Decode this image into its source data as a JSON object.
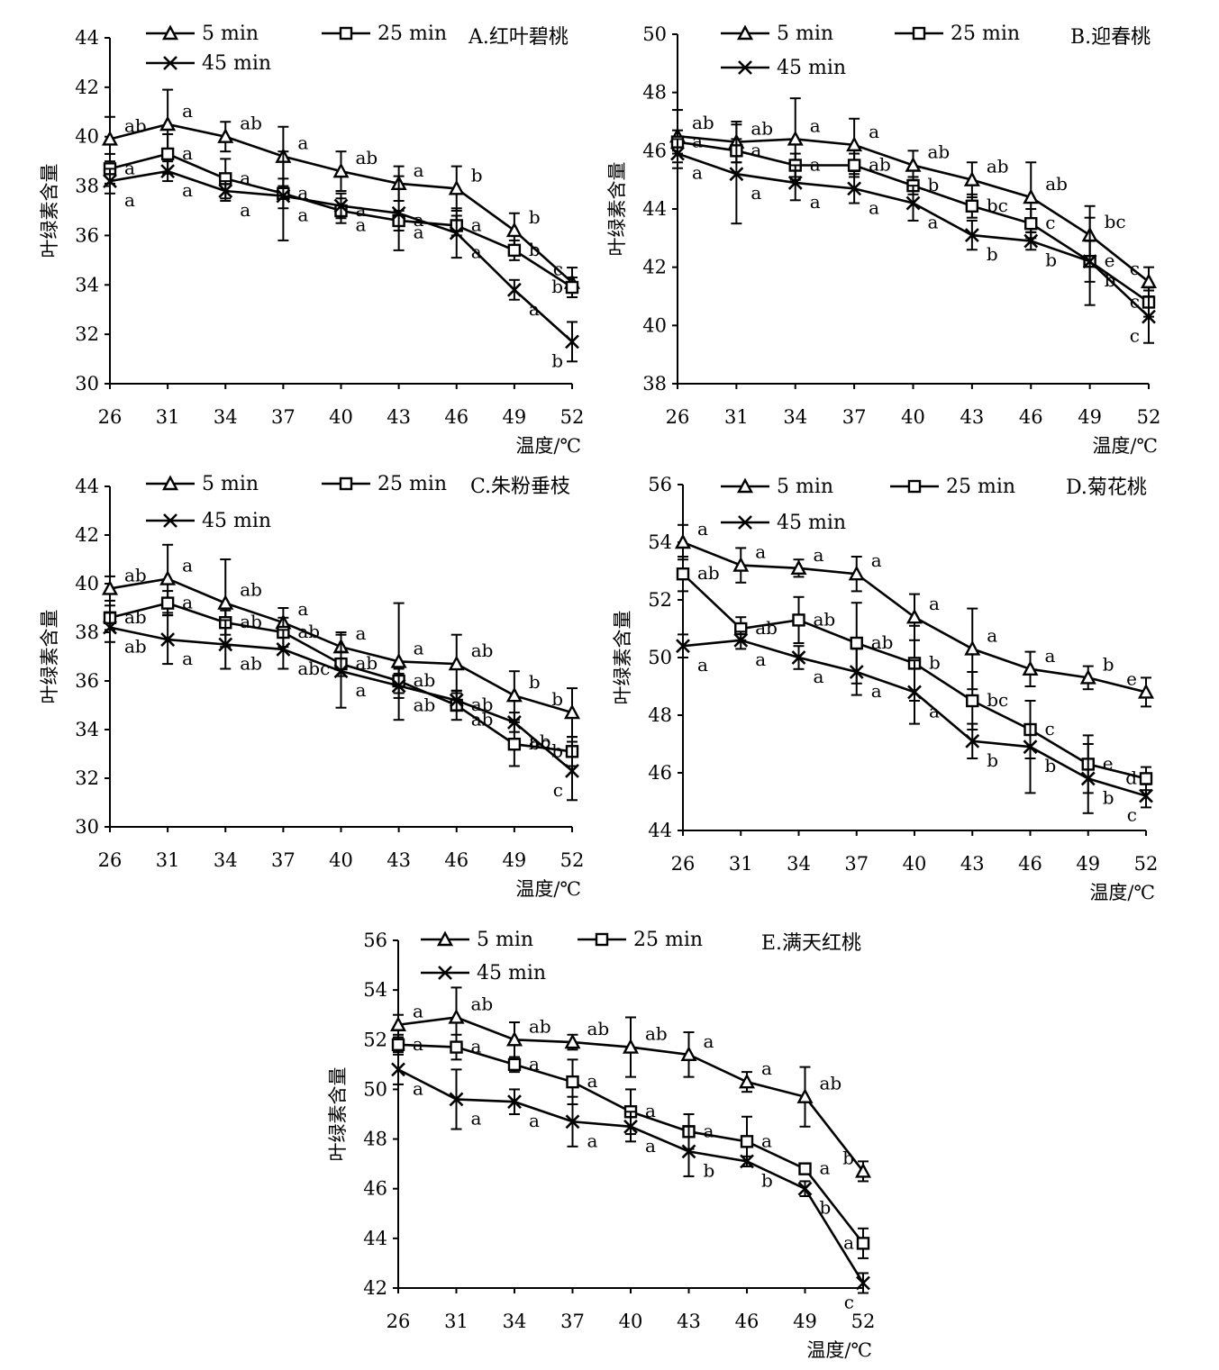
{
  "chart_data": [
    {
      "type": "line",
      "title": "A.红叶碧桃",
      "xlabel": "温度/℃",
      "ylabel": "叶绿素含量",
      "x": [
        26,
        31,
        34,
        37,
        40,
        43,
        46,
        49,
        52
      ],
      "ylim": [
        30,
        44
      ],
      "yticks": [
        30,
        32,
        34,
        36,
        38,
        40,
        42,
        44
      ],
      "series": [
        {
          "name": "5 min",
          "marker": "triangle",
          "values": [
            39.9,
            40.5,
            40.0,
            39.2,
            38.6,
            38.1,
            37.9,
            36.2,
            34.1
          ],
          "errors": [
            0.9,
            1.4,
            0.6,
            1.2,
            0.8,
            0.7,
            0.9,
            0.7,
            0.6
          ],
          "labels": [
            "ab",
            "a",
            "ab",
            "a",
            "ab",
            "a",
            "b",
            "b",
            "c"
          ]
        },
        {
          "name": "25 min",
          "marker": "square",
          "values": [
            38.7,
            39.3,
            38.3,
            37.7,
            37.0,
            36.6,
            36.4,
            35.4,
            33.9
          ],
          "errors": [
            0.6,
            0.8,
            0.8,
            0.6,
            0.5,
            0.4,
            0.4,
            0.4,
            0.4
          ],
          "labels": [
            "a",
            "a",
            "a",
            "a",
            "a",
            "a",
            "a",
            "b",
            "b"
          ]
        },
        {
          "name": "45 min",
          "marker": "x",
          "values": [
            38.2,
            38.6,
            37.8,
            37.6,
            37.2,
            36.9,
            36.1,
            33.8,
            31.7
          ],
          "errors": [
            0.5,
            0.4,
            0.4,
            1.8,
            0.5,
            1.5,
            1.0,
            0.4,
            0.8
          ],
          "labels": [
            "a",
            "a",
            "a",
            "a",
            "a",
            "a",
            "a",
            "a",
            "b"
          ]
        }
      ]
    },
    {
      "type": "line",
      "title": "B.迎春桃",
      "xlabel": "温度/℃",
      "ylabel": "叶绿素含量",
      "x": [
        26,
        31,
        34,
        37,
        40,
        43,
        46,
        49,
        52
      ],
      "ylim": [
        38,
        50
      ],
      "yticks": [
        38,
        40,
        42,
        44,
        46,
        48,
        50
      ],
      "series": [
        {
          "name": "5 min",
          "marker": "triangle",
          "values": [
            46.5,
            46.3,
            46.4,
            46.2,
            45.5,
            45.0,
            44.4,
            43.1,
            41.5
          ],
          "errors": [
            0.9,
            0.7,
            1.4,
            0.9,
            0.5,
            0.6,
            1.2,
            1.0,
            0.5
          ],
          "labels": [
            "ab",
            "ab",
            "a",
            "a",
            "ab",
            "ab",
            "ab",
            "bc",
            "c"
          ]
        },
        {
          "name": "25 min",
          "marker": "square",
          "values": [
            46.3,
            46.0,
            45.5,
            45.5,
            44.8,
            44.1,
            43.5,
            42.2,
            40.8
          ],
          "errors": [
            0.4,
            0.4,
            0.4,
            0.4,
            0.3,
            0.4,
            0.5,
            0.7,
            0.5
          ],
          "labels": [
            "a",
            "a",
            "a",
            "ab",
            "b",
            "bc",
            "c",
            "e",
            "c"
          ]
        },
        {
          "name": "45 min",
          "marker": "x",
          "values": [
            45.9,
            45.2,
            44.9,
            44.7,
            44.2,
            43.1,
            42.9,
            42.2,
            40.3
          ],
          "errors": [
            0.5,
            1.7,
            0.6,
            0.5,
            0.6,
            0.5,
            0.3,
            1.5,
            0.9
          ],
          "labels": [
            "a",
            "a",
            "a",
            "a",
            "a",
            "b",
            "b",
            "b",
            "c"
          ]
        }
      ]
    },
    {
      "type": "line",
      "title": "C.朱粉垂枝",
      "xlabel": "温度/℃",
      "ylabel": "叶绿素含量",
      "x": [
        26,
        31,
        34,
        37,
        40,
        43,
        46,
        49,
        52
      ],
      "ylim": [
        30,
        44
      ],
      "yticks": [
        30,
        32,
        34,
        36,
        38,
        40,
        42,
        44
      ],
      "series": [
        {
          "name": "5 min",
          "marker": "triangle",
          "values": [
            39.8,
            40.2,
            39.2,
            38.4,
            37.4,
            36.8,
            36.7,
            35.4,
            34.7
          ],
          "errors": [
            0.5,
            1.4,
            1.8,
            0.6,
            0.6,
            2.4,
            1.2,
            1.0,
            1.0
          ],
          "labels": [
            "ab",
            "a",
            "ab",
            "a",
            "a",
            "a",
            "ab",
            "b",
            "b"
          ]
        },
        {
          "name": "25 min",
          "marker": "square",
          "values": [
            38.6,
            39.2,
            38.4,
            38.0,
            36.7,
            36.0,
            35.0,
            33.4,
            33.1
          ],
          "errors": [
            0.5,
            0.5,
            0.5,
            0.6,
            0.5,
            0.5,
            0.6,
            0.9,
            0.6
          ],
          "labels": [
            "ab",
            "a",
            "ab",
            "ab",
            "ab",
            "ab",
            "ab",
            "bc",
            "b"
          ]
        },
        {
          "name": "45 min",
          "marker": "x",
          "values": [
            38.2,
            37.7,
            37.5,
            37.3,
            36.4,
            35.8,
            35.2,
            34.3,
            32.3
          ],
          "errors": [
            0.6,
            1.0,
            1.0,
            0.8,
            1.5,
            0.5,
            0.4,
            0.4,
            1.2
          ],
          "labels": [
            "ab",
            "a",
            "ab",
            "abc",
            "a",
            "ab",
            "ab",
            "ab",
            "c"
          ]
        }
      ]
    },
    {
      "type": "line",
      "title": "D.菊花桃",
      "xlabel": "温度/℃",
      "ylabel": "叶绿素含量",
      "x": [
        26,
        31,
        34,
        37,
        40,
        43,
        46,
        49,
        52
      ],
      "ylim": [
        44,
        56
      ],
      "yticks": [
        44,
        46,
        48,
        50,
        52,
        54,
        56
      ],
      "series": [
        {
          "name": "5 min",
          "marker": "triangle",
          "values": [
            54.0,
            53.2,
            53.1,
            52.9,
            51.4,
            50.3,
            49.6,
            49.3,
            48.8
          ],
          "errors": [
            0.6,
            0.6,
            0.3,
            0.6,
            0.8,
            1.4,
            0.6,
            0.4,
            0.5
          ],
          "labels": [
            "a",
            "a",
            "a",
            "a",
            "a",
            "a",
            "a",
            "b",
            "e"
          ]
        },
        {
          "name": "25 min",
          "marker": "square",
          "values": [
            52.9,
            51.0,
            51.3,
            50.5,
            49.8,
            48.5,
            47.5,
            46.3,
            45.8
          ],
          "errors": [
            0.6,
            0.4,
            0.8,
            1.4,
            1.3,
            1.0,
            1.0,
            1.0,
            0.4
          ],
          "labels": [
            "ab",
            "ab",
            "ab",
            "ab",
            "b",
            "bc",
            "c",
            "e",
            "d"
          ]
        },
        {
          "name": "45 min",
          "marker": "x",
          "values": [
            50.4,
            50.6,
            50.0,
            49.5,
            48.8,
            47.1,
            46.9,
            45.8,
            45.2
          ],
          "errors": [
            0.4,
            0.3,
            0.4,
            0.8,
            1.1,
            0.6,
            1.6,
            1.2,
            0.4
          ],
          "labels": [
            "a",
            "a",
            "a",
            "a",
            "a",
            "b",
            "b",
            "b",
            "c"
          ]
        }
      ]
    },
    {
      "type": "line",
      "title": "E.满天红桃",
      "xlabel": "温度/℃",
      "ylabel": "叶绿素含量",
      "x": [
        26,
        31,
        34,
        37,
        40,
        43,
        46,
        49,
        52
      ],
      "ylim": [
        42,
        56
      ],
      "yticks": [
        42,
        44,
        46,
        48,
        50,
        52,
        54,
        56
      ],
      "series": [
        {
          "name": "5 min",
          "marker": "triangle",
          "values": [
            52.6,
            52.9,
            52.0,
            51.9,
            51.7,
            51.4,
            50.3,
            49.7,
            46.7
          ],
          "errors": [
            0.4,
            1.2,
            0.7,
            0.3,
            1.2,
            0.9,
            0.4,
            1.2,
            0.4
          ],
          "labels": [
            "a",
            "ab",
            "ab",
            "ab",
            "ab",
            "a",
            "a",
            "ab",
            "b"
          ]
        },
        {
          "name": "25 min",
          "marker": "square",
          "values": [
            51.8,
            51.7,
            51.0,
            50.3,
            49.1,
            48.3,
            47.9,
            46.8,
            43.8
          ],
          "errors": [
            0.3,
            0.5,
            0.3,
            0.9,
            0.9,
            0.7,
            1.0,
            0.2,
            0.6
          ],
          "labels": [
            "a",
            "a",
            "a",
            "a",
            "a",
            "a",
            "a",
            "a",
            "a"
          ]
        },
        {
          "name": "45 min",
          "marker": "x",
          "values": [
            50.8,
            49.6,
            49.5,
            48.7,
            48.5,
            47.5,
            47.1,
            46.0,
            42.2
          ],
          "errors": [
            0.6,
            1.2,
            0.5,
            1.0,
            0.6,
            1.0,
            0.2,
            0.3,
            0.4
          ],
          "labels": [
            "a",
            "a",
            "a",
            "a",
            "a",
            "b",
            "b",
            "b",
            "c"
          ]
        }
      ]
    }
  ]
}
